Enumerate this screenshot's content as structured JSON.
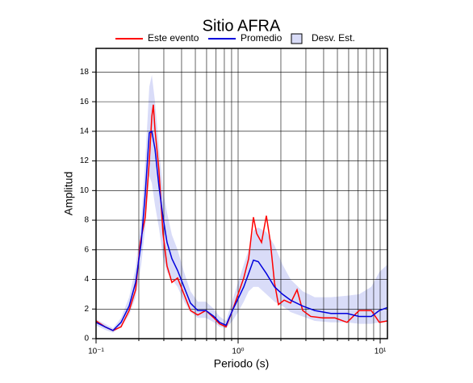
{
  "chart_data": {
    "type": "line",
    "title": "Sitio AFRA",
    "x_label": "Periodo (s)",
    "y_label": "Amplitud",
    "x_log": true,
    "grid": true,
    "xlim": [
      0.1,
      11.25
    ],
    "ylim": [
      0,
      19.6
    ],
    "xticks": [
      {
        "value": 0.1,
        "label": "10⁻¹"
      },
      {
        "value": 1,
        "label": "10⁰"
      },
      {
        "value": 10,
        "label": "10¹"
      }
    ],
    "xminor_ticks": [
      0.2,
      0.3,
      0.4,
      0.5,
      0.6,
      0.7,
      0.8,
      0.9,
      2,
      3,
      4,
      5,
      6,
      7,
      8,
      9
    ],
    "yticks": [
      0,
      2,
      4,
      6,
      8,
      10,
      12,
      14,
      16,
      18
    ],
    "band": {
      "name": "Desv. Est.",
      "color": "#d9dcf8",
      "x": [
        0.1,
        0.1155,
        0.1316,
        0.15,
        0.171,
        0.19,
        0.208,
        0.222,
        0.237,
        0.247,
        0.26,
        0.277,
        0.296,
        0.316,
        0.342,
        0.375,
        0.416,
        0.462,
        0.52,
        0.593,
        0.676,
        0.74,
        0.822,
        0.912,
        1.0,
        1.096,
        1.186,
        1.282,
        1.387,
        1.581,
        1.802,
        2.054,
        2.34,
        2.848,
        3.465,
        4.502,
        5.848,
        7.115,
        8.66,
        9.87,
        11.25
      ],
      "lower": [
        0.9,
        0.6,
        0.4,
        0.8,
        1.6,
        2.8,
        5,
        7.5,
        11,
        10.5,
        9,
        7.5,
        5.5,
        4.5,
        4,
        3.5,
        2.5,
        1.8,
        1.4,
        1.4,
        1.1,
        0.8,
        0.7,
        1.2,
        1.8,
        2.5,
        3.2,
        3.5,
        3.5,
        3,
        2.5,
        2.2,
        1.8,
        1.5,
        1.2,
        1.1,
        1.1,
        1.0,
        1.0,
        1.1,
        1.2
      ],
      "upper": [
        1.3,
        1.0,
        0.7,
        1.4,
        2.8,
        4.8,
        8,
        12,
        17,
        17.8,
        16,
        13,
        10,
        8.5,
        7,
        6,
        4.5,
        3.2,
        2.5,
        2.5,
        2,
        1.5,
        1.2,
        2.6,
        3.8,
        5,
        6,
        7.3,
        7.5,
        7.2,
        6.3,
        5,
        4,
        3.2,
        2.8,
        2.8,
        2.9,
        3,
        3.5,
        4.5,
        5
      ]
    },
    "series": [
      {
        "name": "Este evento",
        "color": "#ff0000",
        "x": [
          0.1,
          0.1155,
          0.1316,
          0.15,
          0.171,
          0.19,
          0.205,
          0.222,
          0.237,
          0.247,
          0.253,
          0.26,
          0.277,
          0.296,
          0.316,
          0.342,
          0.375,
          0.416,
          0.462,
          0.52,
          0.593,
          0.676,
          0.74,
          0.822,
          0.912,
          1.0,
          1.096,
          1.186,
          1.282,
          1.351,
          1.462,
          1.581,
          1.688,
          1.802,
          1.923,
          2.109,
          2.34,
          2.599,
          2.848,
          3.246,
          3.951,
          4.806,
          5.848,
          7.115,
          8.66,
          9.87,
          11.25
        ],
        "values": [
          1.2,
          0.8,
          0.55,
          0.8,
          1.9,
          3.3,
          6.5,
          8.2,
          12,
          15,
          15.8,
          14.1,
          11.4,
          7.1,
          4.9,
          3.8,
          4.1,
          3,
          1.9,
          1.6,
          1.9,
          1.4,
          1.0,
          0.8,
          1.9,
          3,
          4.1,
          5.4,
          8.2,
          7.1,
          6.5,
          8.3,
          6.5,
          3.8,
          2.3,
          2.6,
          2.4,
          3.3,
          1.9,
          1.5,
          1.4,
          1.4,
          1.1,
          1.9,
          1.9,
          1.1,
          1.2
        ]
      },
      {
        "name": "Promedio",
        "color": "#0000dd",
        "x": [
          0.1,
          0.1155,
          0.1316,
          0.15,
          0.171,
          0.19,
          0.208,
          0.222,
          0.237,
          0.247,
          0.26,
          0.277,
          0.296,
          0.316,
          0.342,
          0.375,
          0.416,
          0.462,
          0.52,
          0.593,
          0.676,
          0.74,
          0.822,
          0.912,
          1.0,
          1.096,
          1.186,
          1.282,
          1.387,
          1.581,
          1.802,
          2.054,
          2.34,
          2.848,
          3.465,
          4.502,
          5.848,
          7.115,
          8.66,
          9.87,
          11.25
        ],
        "values": [
          1.1,
          0.8,
          0.55,
          1.1,
          2.2,
          3.8,
          6.5,
          9.8,
          13.9,
          14,
          12.8,
          10.3,
          8.2,
          6.5,
          5.4,
          4.6,
          3.5,
          2.4,
          1.9,
          1.9,
          1.5,
          1.1,
          0.9,
          1.9,
          2.7,
          3.5,
          4.4,
          5.3,
          5.2,
          4.4,
          3.5,
          3.0,
          2.6,
          2.2,
          1.9,
          1.7,
          1.7,
          1.5,
          1.5,
          1.9,
          2.1
        ]
      }
    ]
  }
}
